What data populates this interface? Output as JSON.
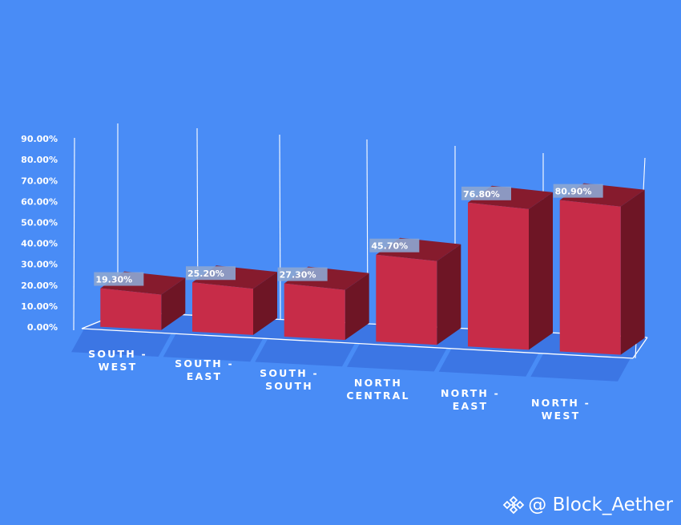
{
  "chart_data": {
    "type": "bar",
    "categories": [
      [
        "SOUTH -",
        "WEST"
      ],
      [
        "SOUTH -",
        "EAST"
      ],
      [
        "SOUTH -",
        "SOUTH"
      ],
      [
        "NORTH",
        "CENTRAL"
      ],
      [
        "NORTH -",
        "EAST"
      ],
      [
        "NORTH -",
        "WEST"
      ]
    ],
    "values": [
      19.3,
      25.2,
      27.3,
      45.7,
      76.8,
      80.9
    ],
    "value_labels": [
      "19.30%",
      "25.20%",
      "27.30%",
      "45.70%",
      "76.80%",
      "80.90%"
    ],
    "y_ticks": [
      "0.00%",
      "10.00%",
      "20.00%",
      "30.00%",
      "40.00%",
      "50.00%",
      "60.00%",
      "70.00%",
      "80.00%",
      "90.00%"
    ],
    "ylim": [
      0,
      90
    ],
    "style": "3d-column",
    "grid": true,
    "legend": "none",
    "colors": {
      "background": "#498cf6",
      "floor": "#3c76e4",
      "bar_front": "#c72c48",
      "bar_side": "#6e1525",
      "bar_top": "#861b2d",
      "label_box": "#8da6d2"
    }
  },
  "watermark": {
    "icon": "binance-diamond-icon",
    "text": "@ Block_Aether"
  }
}
